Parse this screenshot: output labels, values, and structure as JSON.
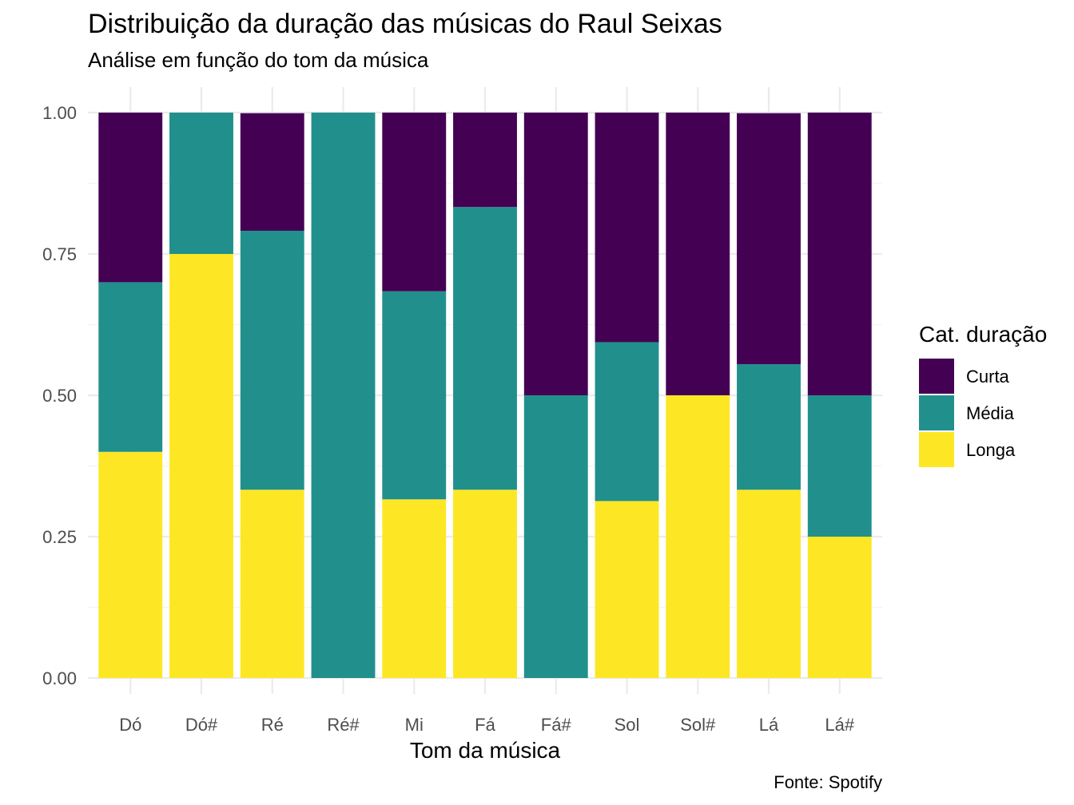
{
  "chart_data": {
    "type": "bar",
    "stacked": "fill",
    "title": "Distribuição da duração das músicas do Raul Seixas",
    "subtitle": "Análise em função do tom da música",
    "xlabel": "Tom da música",
    "ylabel": "",
    "caption": "Fonte: Spotify",
    "ylim": [
      0,
      1
    ],
    "y_ticks": [
      "0.00",
      "0.25",
      "0.50",
      "0.75",
      "1.00"
    ],
    "grid": true,
    "legend_position": "right",
    "legend_title": "Cat. duração",
    "categories": [
      "Dó",
      "Dó#",
      "Ré",
      "Ré#",
      "Mi",
      "Fá",
      "Fá#",
      "Sol",
      "Sol#",
      "Lá",
      "Lá#"
    ],
    "series": [
      {
        "name": "Curta",
        "color": "#440154",
        "values": [
          0.3,
          0.0,
          0.208,
          0.0,
          0.316,
          0.167,
          0.5,
          0.406,
          0.5,
          0.444,
          0.5
        ]
      },
      {
        "name": "Média",
        "color": "#21908C",
        "values": [
          0.3,
          0.25,
          0.458,
          1.0,
          0.368,
          0.5,
          0.5,
          0.281,
          0.0,
          0.222,
          0.25
        ]
      },
      {
        "name": "Longa",
        "color": "#FDE725",
        "values": [
          0.4,
          0.75,
          0.333,
          0.0,
          0.316,
          0.333,
          0.0,
          0.313,
          0.5,
          0.333,
          0.25
        ]
      }
    ]
  }
}
